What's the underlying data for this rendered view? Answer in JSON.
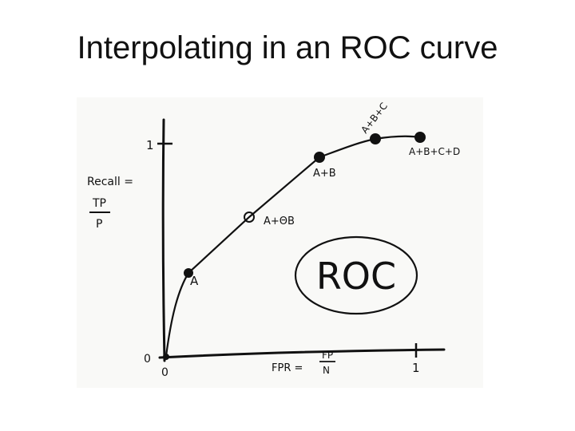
{
  "slide": {
    "title": "Interpolating in an ROC curve"
  },
  "sketch": {
    "y_tick_label": "1",
    "y_axis_label_line1": "Recall =",
    "y_axis_frac_num": "TP",
    "y_axis_frac_den": "P",
    "x_axis_label": "FPR =",
    "x_axis_frac_num": "FP",
    "x_axis_frac_den": "N",
    "x_tick_label": "1",
    "origin_y_label": "0",
    "origin_x_label": "0",
    "roc_text": "ROC",
    "points": [
      {
        "label": "A",
        "filled": true
      },
      {
        "label": "A+ΘB",
        "filled": false
      },
      {
        "label": "A+B",
        "filled": true
      },
      {
        "label": "A+B+C",
        "filled": true
      },
      {
        "label": "A+B+C+D",
        "filled": true
      }
    ]
  },
  "colors": {
    "ink": "#111111",
    "paper": "#f9f9f7"
  }
}
